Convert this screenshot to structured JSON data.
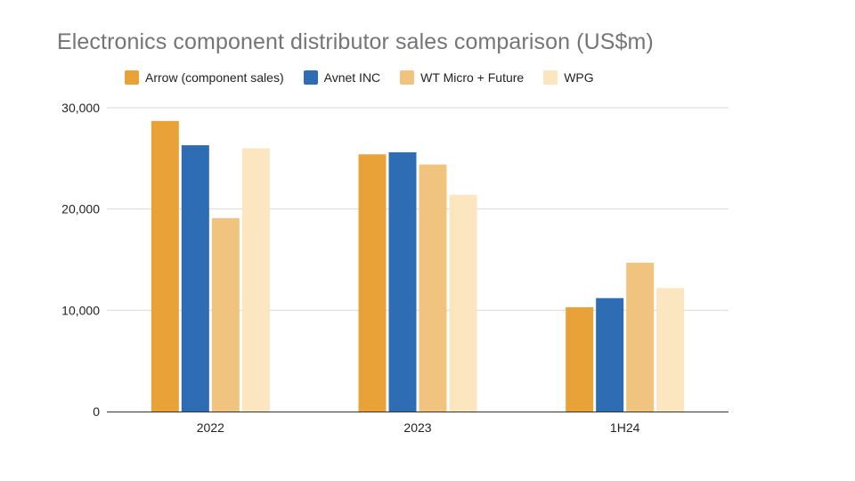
{
  "chart_data": {
    "type": "bar",
    "title": "Electronics component distributor sales comparison (US$m)",
    "xlabel": "",
    "ylabel": "",
    "categories": [
      "2022",
      "2023",
      "1H24"
    ],
    "ylim": [
      0,
      30000
    ],
    "yticks": [
      0,
      10000,
      20000,
      30000
    ],
    "ytick_labels": [
      "0",
      "10,000",
      "20,000",
      "30,000"
    ],
    "grid": true,
    "legend_position": "top",
    "series": [
      {
        "name": "Arrow (component sales)",
        "color": "#e8a237",
        "values": [
          28700,
          25400,
          10300
        ]
      },
      {
        "name": "Avnet INC",
        "color": "#2e6db4",
        "values": [
          26300,
          25600,
          11200
        ]
      },
      {
        "name": "WT Micro + Future",
        "color": "#f0c47e",
        "values": [
          19100,
          24400,
          14700
        ]
      },
      {
        "name": "WPG",
        "color": "#fbe6bf",
        "values": [
          26000,
          21400,
          12200
        ]
      }
    ]
  }
}
